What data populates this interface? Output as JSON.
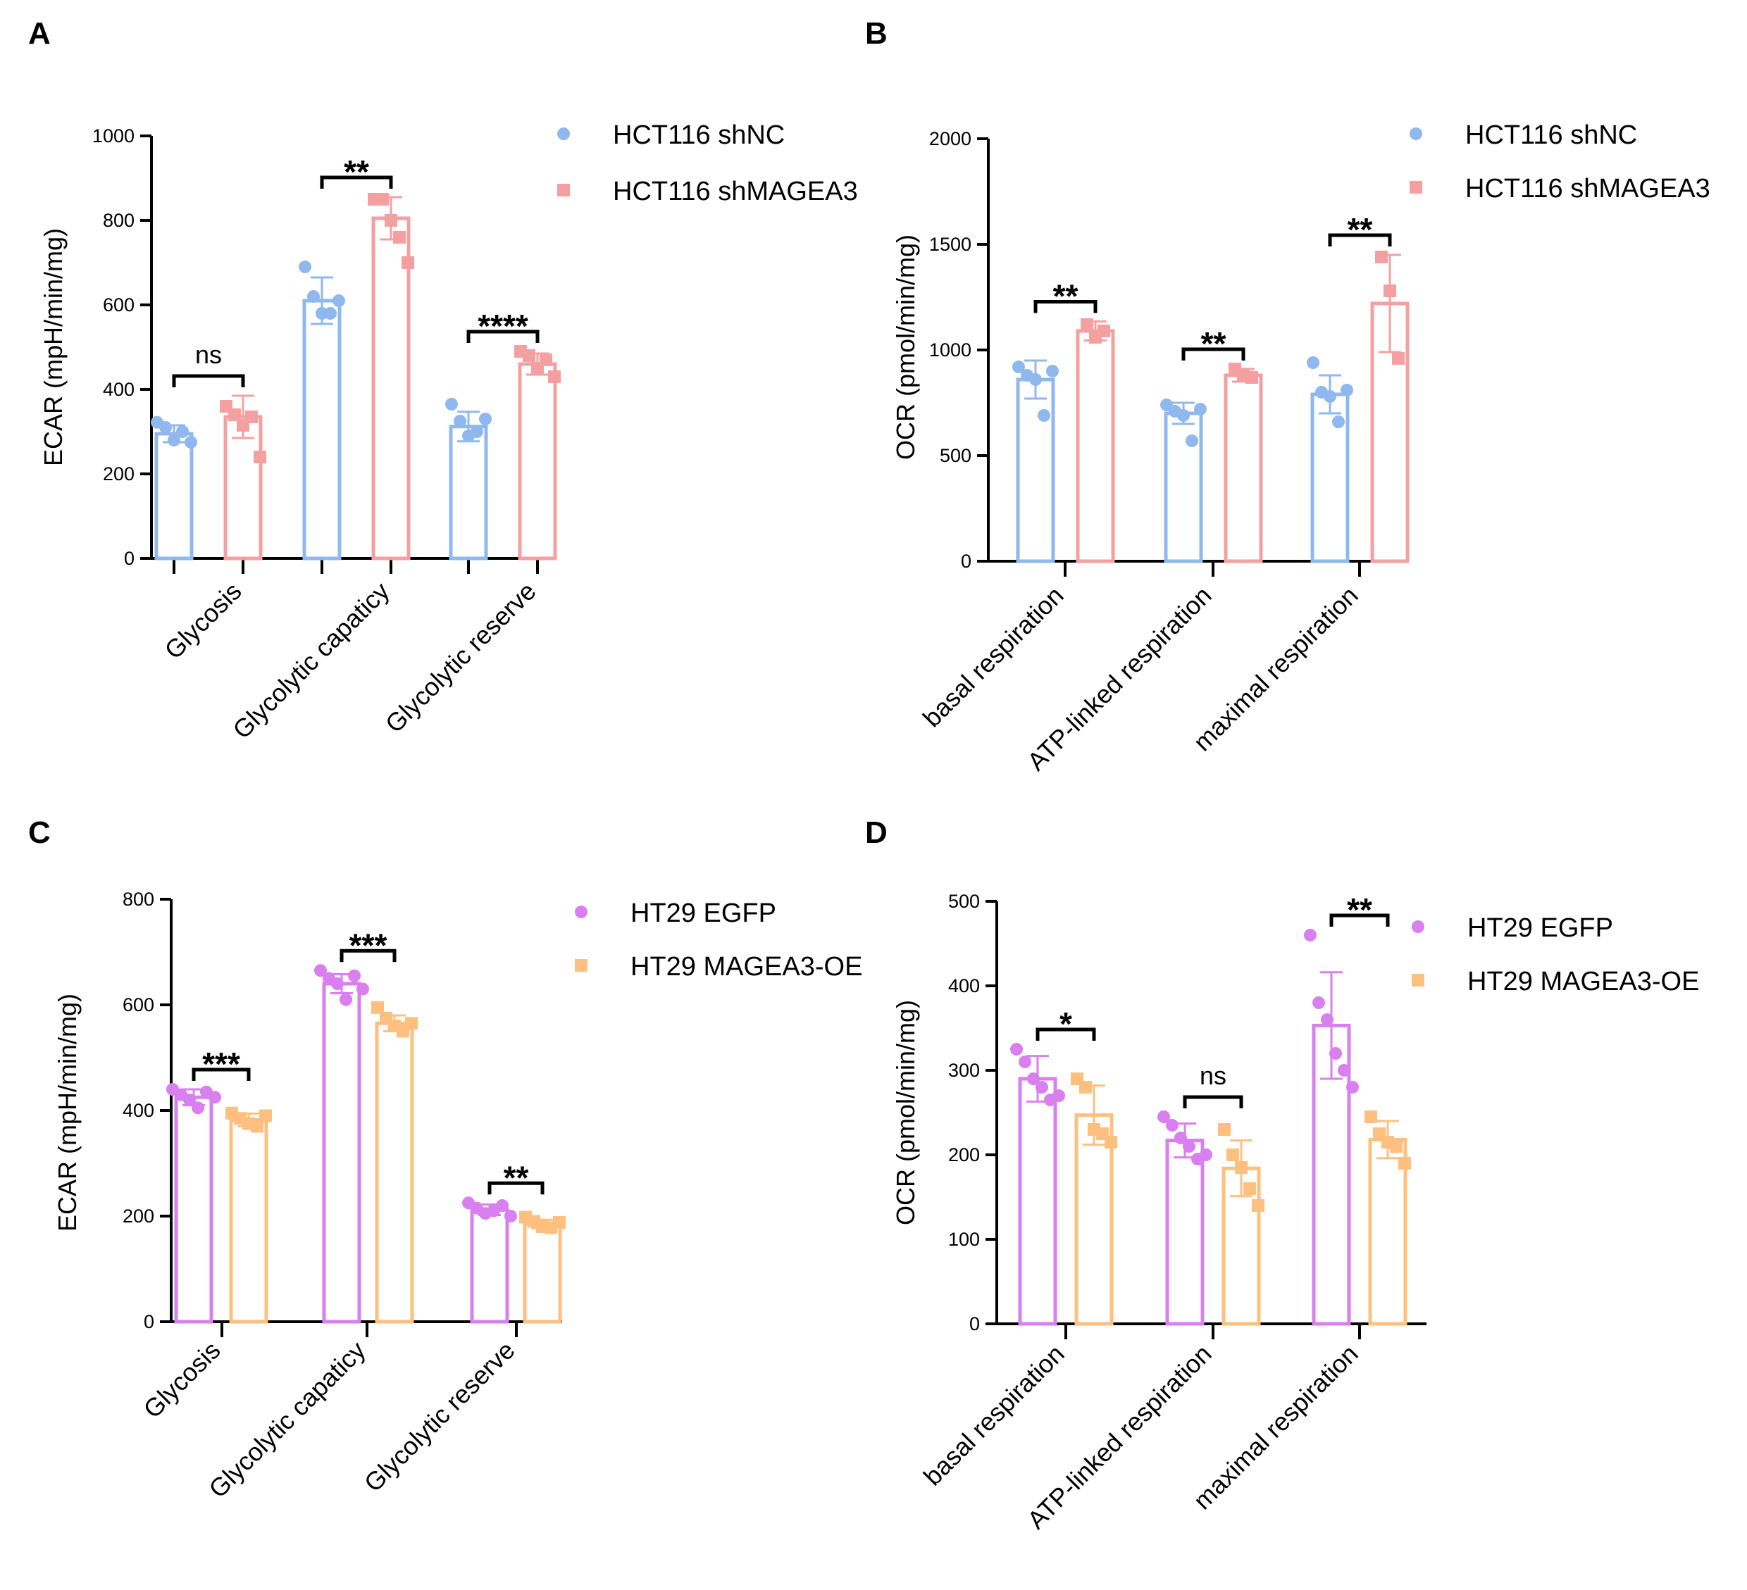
{
  "chart_data": [
    {
      "panel": "A",
      "type": "bar",
      "ylabel": "ECAR (mpH/min/mg)",
      "ylim": [
        0,
        1000
      ],
      "yticks": [
        0,
        200,
        400,
        600,
        800,
        1000
      ],
      "categories": [
        "Glycosis",
        "Glycolytic capaticy",
        "Glycolytic reserve"
      ],
      "series": [
        {
          "name": "HCT116 shNC",
          "color": "#8fb8ee",
          "marker": "circle",
          "values": [
            295,
            610,
            312
          ],
          "errors": [
            20,
            55,
            35
          ],
          "points": [
            [
              322,
              310,
              280,
              300,
              275
            ],
            [
              690,
              620,
              580,
              580,
              610
            ],
            [
              365,
              325,
              290,
              300,
              330
            ]
          ]
        },
        {
          "name": "HCT116 shMAGEA3",
          "color": "#f5a0a0",
          "marker": "square",
          "values": [
            335,
            805,
            460
          ],
          "errors": [
            50,
            50,
            25
          ],
          "points": [
            [
              360,
              340,
              315,
              335,
              240
            ],
            [
              850,
              850,
              800,
              760,
              700
            ],
            [
              490,
              480,
              450,
              470,
              430
            ]
          ]
        }
      ],
      "significance": [
        "ns",
        "**",
        "****"
      ],
      "legend_position": "top-right"
    },
    {
      "panel": "B",
      "type": "bar",
      "ylabel": "OCR (pmol/min/mg)",
      "ylim": [
        0,
        2000
      ],
      "yticks": [
        0,
        500,
        1000,
        1500,
        2000
      ],
      "categories": [
        "basal respiration",
        "ATP-linked respiration",
        "maximal respiration"
      ],
      "series": [
        {
          "name": "HCT116 shNC",
          "color": "#8fb8ee",
          "marker": "circle",
          "values": [
            860,
            700,
            790
          ],
          "errors": [
            90,
            50,
            90
          ],
          "points": [
            [
              920,
              880,
              860,
              690,
              900
            ],
            [
              740,
              710,
              690,
              570,
              720
            ],
            [
              940,
              800,
              780,
              660,
              810
            ]
          ]
        },
        {
          "name": "HCT116 shMAGEA3",
          "color": "#f5a0a0",
          "marker": "square",
          "values": [
            1090,
            880,
            1220
          ],
          "errors": [
            45,
            30,
            230
          ],
          "points": [
            [
              1120,
              1060,
              1090
            ],
            [
              910,
              880,
              870
            ],
            [
              1440,
              1280,
              960
            ]
          ]
        }
      ],
      "significance": [
        "**",
        "**",
        "**"
      ],
      "legend_position": "top-right"
    },
    {
      "panel": "C",
      "type": "bar",
      "ylabel": "ECAR (mpH/min/mg)",
      "ylim": [
        0,
        800
      ],
      "yticks": [
        0,
        200,
        400,
        600,
        800
      ],
      "categories": [
        "Glycosis",
        "Glycolytic capaticy",
        "Glycolytic reserve"
      ],
      "series": [
        {
          "name": "HT29 EGFP",
          "color": "#d97ff0",
          "marker": "circle",
          "values": [
            425,
            640,
            212
          ],
          "errors": [
            15,
            18,
            10
          ],
          "points": [
            [
              440,
              430,
              420,
              405,
              435,
              425
            ],
            [
              665,
              650,
              640,
              610,
              655,
              630
            ],
            [
              225,
              215,
              205,
              210,
              220,
              200
            ]
          ]
        },
        {
          "name": "HT29 MAGEA3-OE",
          "color": "#ffc07f",
          "marker": "square",
          "values": [
            382,
            565,
            185
          ],
          "errors": [
            12,
            15,
            8
          ],
          "points": [
            [
              395,
              385,
              375,
              370,
              390
            ],
            [
              595,
              575,
              560,
              550,
              565
            ],
            [
              198,
              190,
              180,
              178,
              188
            ]
          ]
        }
      ],
      "significance": [
        "***",
        "***",
        "**"
      ],
      "legend_position": "top-right"
    },
    {
      "panel": "D",
      "type": "bar",
      "ylabel": "OCR (pmol/min/mg)",
      "ylim": [
        0,
        500
      ],
      "yticks": [
        0,
        100,
        200,
        300,
        400,
        500
      ],
      "categories": [
        "basal respiration",
        "ATP-linked respiration",
        "maximal respiration"
      ],
      "series": [
        {
          "name": "HT29 EGFP",
          "color": "#d97ff0",
          "marker": "circle",
          "values": [
            290,
            217,
            353
          ],
          "errors": [
            27,
            20,
            63
          ],
          "points": [
            [
              325,
              310,
              290,
              280,
              265,
              270
            ],
            [
              245,
              235,
              220,
              210,
              195,
              200
            ],
            [
              460,
              380,
              360,
              320,
              300,
              280
            ]
          ]
        },
        {
          "name": "HT29 MAGEA3-OE",
          "color": "#ffc07f",
          "marker": "square",
          "values": [
            247,
            184,
            218
          ],
          "errors": [
            35,
            33,
            22
          ],
          "points": [
            [
              290,
              280,
              230,
              225,
              215
            ],
            [
              230,
              200,
              185,
              160,
              140
            ],
            [
              245,
              225,
              215,
              210,
              190
            ]
          ]
        }
      ],
      "significance": [
        "*",
        "ns",
        "**"
      ],
      "legend_position": "top-right"
    }
  ]
}
